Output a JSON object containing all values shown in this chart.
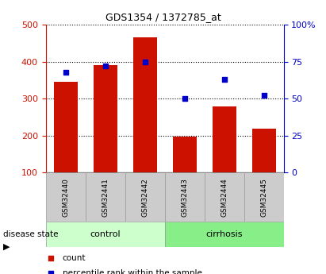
{
  "title": "GDS1354 / 1372785_at",
  "categories": [
    "GSM32440",
    "GSM32441",
    "GSM32442",
    "GSM32443",
    "GSM32444",
    "GSM32445"
  ],
  "counts": [
    345,
    390,
    465,
    197,
    280,
    218
  ],
  "percentile_ranks": [
    68,
    72,
    75,
    50,
    63,
    52
  ],
  "bar_color": "#cc1100",
  "dot_color": "#0000cc",
  "left_ylim": [
    100,
    500
  ],
  "right_ylim": [
    0,
    100
  ],
  "left_yticks": [
    100,
    200,
    300,
    400,
    500
  ],
  "right_yticks": [
    0,
    25,
    50,
    75,
    100
  ],
  "right_yticklabels": [
    "0",
    "25",
    "50",
    "75",
    "100%"
  ],
  "groups": [
    {
      "label": "control",
      "indices": [
        0,
        1,
        2
      ],
      "color": "#ccffcc"
    },
    {
      "label": "cirrhosis",
      "indices": [
        3,
        4,
        5
      ],
      "color": "#88ee88"
    }
  ],
  "disease_state_label": "disease state",
  "legend_count_label": "count",
  "legend_pct_label": "percentile rank within the sample",
  "left_axis_color": "#cc1100",
  "right_axis_color": "#0000cc",
  "tick_area_color": "#cccccc",
  "bar_bottom": 100,
  "bar_width": 0.6
}
